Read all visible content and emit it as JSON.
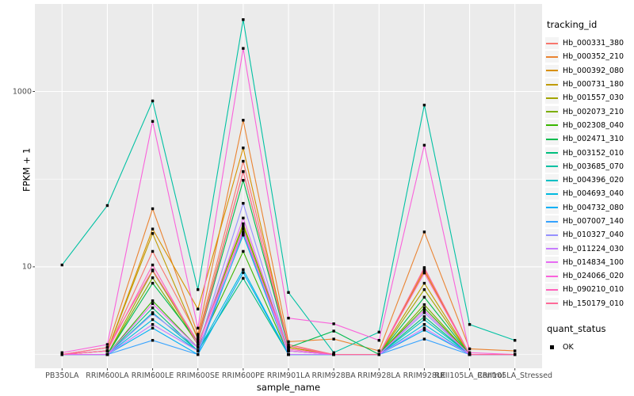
{
  "figure": {
    "background": "#FFFFFF",
    "panel_bg": "#EBEBEB",
    "grid_color": "#FFFFFF",
    "point_color": "#000000",
    "tick_label_color": "#4D4D4D"
  },
  "axes": {
    "y_title": "FPKM + 1",
    "x_title": "sample_name",
    "y_ticks": [
      "1000",
      "10"
    ]
  },
  "legend": {
    "tracking_title": "tracking_id",
    "quant_title": "quant_status",
    "quant_items": [
      {
        "label": "OK",
        "marker": "black-square"
      }
    ]
  },
  "chart_data": {
    "type": "line",
    "title": "",
    "xlabel": "sample_name",
    "ylabel": "FPKM + 1",
    "y_scale": "log10",
    "ylim": [
      0.65,
      10000
    ],
    "y_major_breaks": [
      10,
      1000
    ],
    "y_minor_breaks": [
      1,
      100
    ],
    "grid": true,
    "legend_position": "right",
    "point_marker": "black-square",
    "quant_status": "OK",
    "categories": [
      "PB350LA",
      "RRIM600LA",
      "RRIM600LE",
      "RRIM600SE",
      "RRIM600PE",
      "RRIM901LA",
      "RRIM928BA",
      "RRIM928LA",
      "RRIM928LE",
      "RRII105LA_Control",
      "RRII105LA_Stressed"
    ],
    "series": [
      {
        "name": "Hb_000331_380",
        "color": "#F8766D",
        "values": [
          1,
          1.1,
          15,
          1.6,
          160,
          1.3,
          1,
          1,
          9.5,
          1,
          1
        ]
      },
      {
        "name": "Hb_000352_210",
        "color": "#EA8331",
        "values": [
          1,
          1.2,
          46,
          1.7,
          470,
          1.4,
          1.5,
          1.1,
          25,
          1.16,
          1.1
        ]
      },
      {
        "name": "Hb_000392_080",
        "color": "#D89000",
        "values": [
          1,
          1.1,
          27,
          3.3,
          227,
          1.2,
          1,
          1,
          9,
          1,
          1
        ]
      },
      {
        "name": "Hb_000731_180",
        "color": "#C09B00",
        "values": [
          1,
          1.1,
          24,
          1.5,
          122,
          1.2,
          1,
          1,
          6.5,
          1,
          1
        ]
      },
      {
        "name": "Hb_001557_030",
        "color": "#A3A500",
        "values": [
          1,
          1,
          9,
          1.3,
          31,
          1.1,
          1,
          1,
          5.5,
          1,
          1
        ]
      },
      {
        "name": "Hb_002073_210",
        "color": "#7CAE00",
        "values": [
          1,
          1,
          7.5,
          1.3,
          29,
          1.1,
          1,
          1,
          3.7,
          1,
          1
        ]
      },
      {
        "name": "Hb_002308_040",
        "color": "#39B600",
        "values": [
          1,
          1,
          4.1,
          1.2,
          15,
          1,
          1,
          1,
          3.4,
          1,
          1
        ]
      },
      {
        "name": "Hb_002471_310",
        "color": "#00BB4E",
        "values": [
          1,
          1,
          6.5,
          1.4,
          97,
          1.2,
          1.85,
          1,
          4.5,
          1,
          1
        ]
      },
      {
        "name": "Hb_003152_010",
        "color": "#00BF7D",
        "values": [
          1,
          1,
          3.4,
          1.1,
          7.4,
          1,
          1,
          1,
          2.7,
          1,
          1
        ]
      },
      {
        "name": "Hb_003685_070",
        "color": "#00C1A3",
        "values": [
          10.5,
          50,
          780,
          5.5,
          6600,
          5.1,
          1.05,
          1.8,
          700,
          2.2,
          1.45
        ]
      },
      {
        "name": "Hb_004396_020",
        "color": "#00BFC4",
        "values": [
          1,
          1,
          3.0,
          1.1,
          23,
          1,
          1,
          1,
          2.5,
          1,
          1
        ]
      },
      {
        "name": "Hb_004693_040",
        "color": "#00BAE0",
        "values": [
          1,
          1,
          2.5,
          1.1,
          9.3,
          1,
          1,
          1,
          2.2,
          1,
          1
        ]
      },
      {
        "name": "Hb_004732_080",
        "color": "#00B0F6",
        "values": [
          1,
          1,
          2.0,
          1,
          8.6,
          1,
          1,
          1,
          1.9,
          1,
          1
        ]
      },
      {
        "name": "Hb_007007_140",
        "color": "#35A2FF",
        "values": [
          1,
          1,
          1.45,
          1,
          24,
          1,
          1,
          1,
          1.5,
          1,
          1
        ]
      },
      {
        "name": "Hb_010327_040",
        "color": "#9590FF",
        "values": [
          1,
          1,
          2.9,
          1.2,
          53,
          1.1,
          1,
          1,
          3.0,
          1,
          1
        ]
      },
      {
        "name": "Hb_011224_030",
        "color": "#C77CFF",
        "values": [
          1,
          1,
          2.2,
          1.1,
          27,
          1,
          1,
          1,
          2.0,
          1,
          1
        ]
      },
      {
        "name": "Hb_014834_100",
        "color": "#E76BF3",
        "values": [
          1,
          1,
          3.8,
          1.2,
          36,
          1.1,
          1,
          1,
          3.2,
          1,
          1
        ]
      },
      {
        "name": "Hb_024066_020",
        "color": "#FA62DB",
        "values": [
          1.05,
          1.3,
          456,
          2.0,
          3100,
          2.6,
          2.24,
          1.45,
          244,
          1.05,
          1
        ]
      },
      {
        "name": "Hb_090210_010",
        "color": "#FF62BC",
        "values": [
          1,
          1.1,
          10.5,
          1.3,
          25,
          1.15,
          1,
          1,
          8.5,
          1,
          1
        ]
      },
      {
        "name": "Hb_150179_010",
        "color": "#FF6A98",
        "values": [
          1,
          1.2,
          9.2,
          1.4,
          122,
          1.25,
          1,
          1,
          9.8,
          1,
          1
        ]
      }
    ]
  }
}
